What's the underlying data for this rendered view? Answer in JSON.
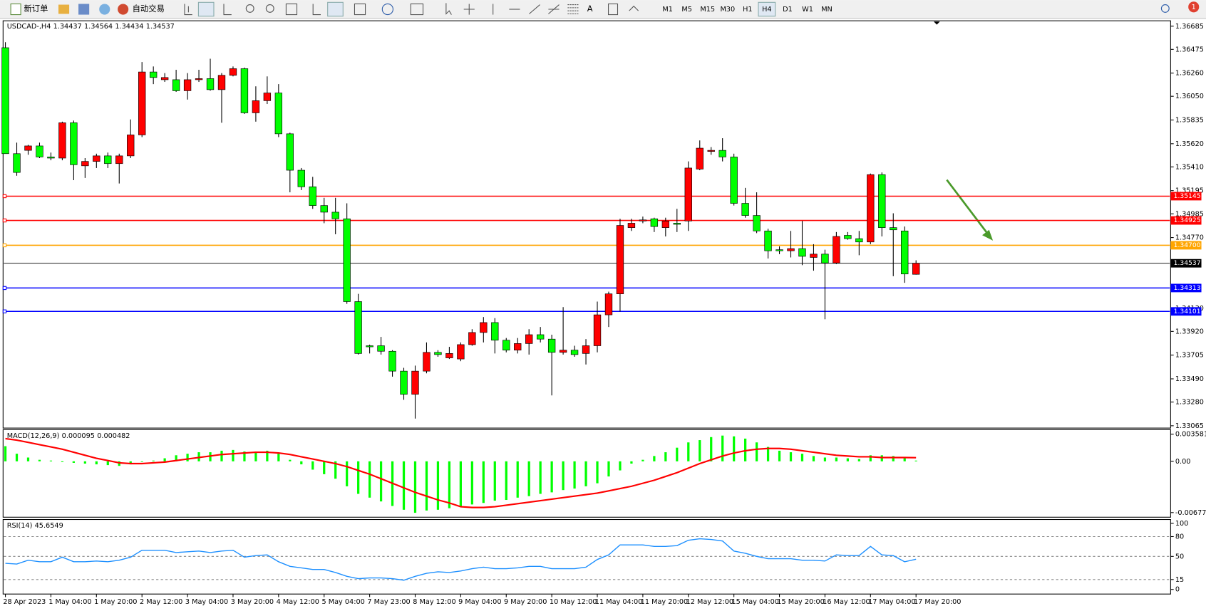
{
  "toolbar": {
    "new_order": "新订单",
    "auto_trading": "自动交易",
    "text_tool": "A",
    "timeframes": [
      "M1",
      "M5",
      "M15",
      "M30",
      "H1",
      "H4",
      "D1",
      "W1",
      "MN"
    ],
    "selected_timeframe": 5,
    "notifications": 1
  },
  "chart_data": [
    {
      "type": "candlestick",
      "title": "USDCAD-,H4",
      "header_values": [
        1.34437,
        1.34564,
        1.34434,
        1.34537
      ],
      "categories": [
        "28 Apr 2023",
        null,
        null,
        null,
        "1 May 04:00",
        null,
        null,
        null,
        "1 May 20:00",
        null,
        null,
        null,
        "2 May 12:00",
        null,
        null,
        null,
        "3 May 04:00",
        null,
        null,
        null,
        "3 May 20:00",
        null,
        null,
        null,
        "4 May 12:00",
        null,
        null,
        null,
        "5 May 04:00",
        null,
        null,
        null,
        "7 May 23:00",
        null,
        null,
        null,
        "8 May 12:00",
        null,
        null,
        null,
        "9 May 04:00",
        null,
        null,
        null,
        "9 May 20:00",
        null,
        null,
        null,
        "10 May 12:00",
        null,
        null,
        null,
        "11 May 04:00",
        null,
        null,
        null,
        "11 May 20:00",
        null,
        null,
        null,
        "12 May 12:00",
        null,
        null,
        null,
        "15 May 04:00",
        null,
        null,
        null,
        "15 May 20:00",
        null,
        null,
        null,
        "16 May 12:00",
        null,
        null,
        null,
        "17 May 04:00",
        null,
        null,
        null,
        "17 May 20:00"
      ],
      "open": [
        1.3649,
        1.3553,
        1.3556,
        1.356,
        1.355,
        1.3549,
        1.3581,
        1.3542,
        1.3546,
        1.3551,
        1.3544,
        1.3551,
        1.357,
        1.3627,
        1.362,
        1.362,
        1.361,
        1.362,
        1.3621,
        1.3611,
        1.3624,
        1.363,
        1.359,
        1.3601,
        1.3608,
        1.3571,
        1.3538,
        1.3523,
        1.3506,
        1.35,
        1.3494,
        1.3419,
        1.3379,
        1.3379,
        1.3374,
        1.3356,
        1.3335,
        1.3356,
        1.3373,
        1.3368,
        1.3367,
        1.338,
        1.3391,
        1.34,
        1.3384,
        1.3375,
        1.3381,
        1.3389,
        1.3385,
        1.3373,
        1.3375,
        1.3372,
        1.3379,
        1.3407,
        1.3426,
        1.3486,
        1.3492,
        1.3494,
        1.3486,
        1.349,
        1.3492,
        1.3539,
        1.3555,
        1.3556,
        1.355,
        1.3508,
        1.3497,
        1.3483,
        1.3466,
        1.3465,
        1.3467,
        1.3459,
        1.3462,
        1.3454,
        1.3479,
        1.3476,
        1.3473,
        1.3534,
        1.3486,
        1.3483,
        1.34437
      ],
      "high": [
        1.3654,
        1.3563,
        1.3561,
        1.3563,
        1.3554,
        1.3582,
        1.3583,
        1.3549,
        1.3553,
        1.3554,
        1.3553,
        1.3584,
        1.3636,
        1.3632,
        1.3626,
        1.3629,
        1.3626,
        1.3629,
        1.3639,
        1.3626,
        1.3632,
        1.3631,
        1.3614,
        1.3623,
        1.3616,
        1.3572,
        1.354,
        1.3532,
        1.3513,
        1.3513,
        1.3508,
        1.3426,
        1.338,
        1.3387,
        1.3375,
        1.3359,
        1.3361,
        1.3382,
        1.3375,
        1.3378,
        1.3382,
        1.3394,
        1.3405,
        1.3404,
        1.3386,
        1.3386,
        1.3394,
        1.3396,
        1.3389,
        1.3414,
        1.3379,
        1.3385,
        1.3419,
        1.3428,
        1.3494,
        1.3494,
        1.3496,
        1.3495,
        1.3495,
        1.3503,
        1.3546,
        1.3565,
        1.3559,
        1.3567,
        1.3553,
        1.3522,
        1.3518,
        1.3485,
        1.3469,
        1.3483,
        1.3492,
        1.3471,
        1.3466,
        1.3482,
        1.3482,
        1.3483,
        1.3535,
        1.3536,
        1.3499,
        1.3487,
        1.34564
      ],
      "low": [
        1.3553,
        1.3533,
        1.3552,
        1.3549,
        1.3547,
        1.3547,
        1.3529,
        1.3531,
        1.354,
        1.354,
        1.3526,
        1.3549,
        1.3568,
        1.3616,
        1.3618,
        1.3609,
        1.3602,
        1.3618,
        1.361,
        1.3581,
        1.3623,
        1.3589,
        1.3582,
        1.3598,
        1.3568,
        1.3518,
        1.352,
        1.3503,
        1.349,
        1.348,
        1.3417,
        1.3371,
        1.3372,
        1.3371,
        1.3351,
        1.333,
        1.3313,
        1.3354,
        1.3369,
        1.3367,
        1.3365,
        1.3379,
        1.3382,
        1.3372,
        1.3373,
        1.3372,
        1.3371,
        1.3382,
        1.3334,
        1.3371,
        1.3369,
        1.3362,
        1.3373,
        1.3396,
        1.341,
        1.3483,
        1.349,
        1.3482,
        1.3478,
        1.3482,
        1.3483,
        1.3538,
        1.3552,
        1.3546,
        1.3506,
        1.3495,
        1.3481,
        1.3458,
        1.3462,
        1.3459,
        1.3452,
        1.3447,
        1.3403,
        1.3453,
        1.3475,
        1.3461,
        1.3471,
        1.3478,
        1.3442,
        1.3436,
        1.34434
      ],
      "close": [
        1.3553,
        1.3536,
        1.356,
        1.355,
        1.3549,
        1.3581,
        1.3543,
        1.3546,
        1.3551,
        1.3544,
        1.3551,
        1.357,
        1.3627,
        1.3622,
        1.3622,
        1.361,
        1.362,
        1.3621,
        1.3611,
        1.3624,
        1.363,
        1.359,
        1.3601,
        1.3608,
        1.3571,
        1.3538,
        1.3523,
        1.3506,
        1.35,
        1.3494,
        1.3419,
        1.3372,
        1.3378,
        1.3374,
        1.3356,
        1.3335,
        1.3356,
        1.3373,
        1.3371,
        1.3372,
        1.338,
        1.3391,
        1.34,
        1.3384,
        1.3375,
        1.3381,
        1.3389,
        1.3385,
        1.3373,
        1.3375,
        1.3371,
        1.3379,
        1.3407,
        1.3426,
        1.3488,
        1.349,
        1.3493,
        1.3487,
        1.3492,
        1.3489,
        1.354,
        1.3558,
        1.3556,
        1.355,
        1.3508,
        1.3497,
        1.3483,
        1.3465,
        1.3465,
        1.3467,
        1.346,
        1.3462,
        1.3454,
        1.3478,
        1.3476,
        1.3473,
        1.3534,
        1.3486,
        1.3484,
        1.3444,
        1.34537
      ],
      "up_color": "#ff0000",
      "down_color": "#00ff00",
      "ylim": [
        1.33065,
        1.36685
      ],
      "yticks": [
        1.36685,
        1.36475,
        {
          "value": 1.3626,
          "label": "1.36260"
        },
        {
          "value": 1.3605,
          "label": "1.36050"
        },
        1.35835,
        {
          "value": 1.3562,
          "label": "1.35620"
        },
        {
          "value": 1.3541,
          "label": "1.35410"
        },
        1.35195,
        1.34985,
        {
          "value": 1.3477,
          "label": "1.34770"
        },
        {
          "value": 1.3413,
          "label": "1.34130"
        },
        {
          "value": 1.3392,
          "label": "1.33920"
        },
        1.33705,
        {
          "value": 1.3349,
          "label": "1.33490"
        },
        {
          "value": 1.3328,
          "label": "1.33280"
        },
        1.33065
      ],
      "hlines": [
        {
          "value": 1.35145,
          "color": "#ff0000"
        },
        {
          "value": 1.34925,
          "color": "#ff0000"
        },
        {
          "value": 1.347,
          "label": "1.34700",
          "color": "#ffa500"
        },
        {
          "value": 1.34537,
          "color": "#000000"
        },
        {
          "value": 1.34313,
          "color": "#0000ff"
        },
        {
          "value": 1.34101,
          "color": "#0000ff"
        }
      ]
    },
    {
      "type": "macd",
      "title": "MACD(12,26,9)",
      "histogram": {
        "color": "#00ff00",
        "values": [
          0.002,
          0.001,
          0.0005,
          0.0002,
          0.0001,
          -0.0001,
          -0.0002,
          -0.0003,
          -0.0004,
          -0.0005,
          -0.0006,
          -0.0004,
          0,
          0.0001,
          0.0004,
          0.0008,
          0.001,
          0.0012,
          0.0012,
          0.0014,
          0.0015,
          0.0013,
          0.0013,
          0.0014,
          0.001,
          0.0002,
          -0.0004,
          -0.0011,
          -0.0017,
          -0.0023,
          -0.0033,
          -0.0043,
          -0.0048,
          -0.0053,
          -0.0059,
          -0.0064,
          -0.0068,
          -0.0065,
          -0.0064,
          -0.0062,
          -0.006,
          -0.0057,
          -0.0055,
          -0.0052,
          -0.0051,
          -0.0048,
          -0.0046,
          -0.0043,
          -0.0041,
          -0.0038,
          -0.0036,
          -0.0033,
          -0.0029,
          -0.002,
          -0.0012,
          -0.0003,
          0.0002,
          0.0007,
          0.0012,
          0.0018,
          0.0025,
          0.0028,
          0.0032,
          0.0034,
          0.0033,
          0.003,
          0.0025,
          0.0019,
          0.0014,
          0.0012,
          0.001,
          0.0007,
          0.0005,
          0.0005,
          0.0004,
          0.0003,
          0.0008,
          0.0008,
          0.0007,
          0.0004,
          9.5e-05
        ]
      },
      "signal": {
        "color": "#ff0000",
        "values": [
          0.003,
          0.0028,
          0.0025,
          0.0022,
          0.0019,
          0.0016,
          0.0012,
          0.0008,
          0.0004,
          0.0001,
          -0.0002,
          -0.0003,
          -0.0003,
          -0.0002,
          -0.0001,
          0.0001,
          0.0003,
          0.0005,
          0.0007,
          0.0009,
          0.001,
          0.0011,
          0.0012,
          0.0012,
          0.0011,
          0.0009,
          0.0006,
          0.0003,
          0,
          -0.0003,
          -0.0007,
          -0.0012,
          -0.0017,
          -0.0023,
          -0.0029,
          -0.0035,
          -0.0041,
          -0.0046,
          -0.0051,
          -0.0055,
          -0.006,
          -0.0061,
          -0.0061,
          -0.006,
          -0.0058,
          -0.0056,
          -0.0054,
          -0.0052,
          -0.005,
          -0.0048,
          -0.0046,
          -0.0044,
          -0.0042,
          -0.0039,
          -0.0036,
          -0.0033,
          -0.0029,
          -0.0025,
          -0.002,
          -0.0015,
          -0.0009,
          -0.0003,
          0.0002,
          0.0007,
          0.0011,
          0.0014,
          0.0016,
          0.0017,
          0.0017,
          0.0016,
          0.0014,
          0.0012,
          0.001,
          0.0008,
          0.0007,
          0.0006,
          0.0006,
          0.0005,
          0.0005,
          0.0005,
          0.000482
        ]
      },
      "ylim": [
        -0.006775,
        0.003581
      ],
      "yticks": [
        0.003581,
        {
          "value": 0,
          "label": "0.00"
        },
        -0.006775
      ]
    },
    {
      "type": "line",
      "title": "RSI(14)",
      "color": "#1e90ff",
      "values": [
        39.5,
        38.4,
        44.2,
        41.9,
        41.9,
        48.8,
        41.9,
        41.9,
        43,
        41.9,
        44.2,
        48.8,
        59.3,
        59.3,
        59.3,
        55.8,
        57,
        58.1,
        55.8,
        58.1,
        59.3,
        48.8,
        51.2,
        52.3,
        41.9,
        34.9,
        32.6,
        30.2,
        30.2,
        25.6,
        19.8,
        16.3,
        17.4,
        17.4,
        16.3,
        14,
        19.8,
        24.4,
        26.7,
        25.6,
        27.9,
        31.4,
        33.7,
        31.4,
        31.4,
        32.6,
        34.9,
        34.9,
        31.4,
        31.4,
        31.4,
        33.7,
        45.3,
        52.3,
        67.4,
        67.4,
        67.4,
        65.1,
        65.1,
        66.3,
        74.4,
        76.7,
        75.6,
        73.3,
        58.1,
        54.7,
        50,
        46.5,
        46.5,
        46.5,
        44.2,
        44.2,
        43,
        52.3,
        51.2,
        51.2,
        65.1,
        52.3,
        51.2,
        41.9,
        45.6549
      ],
      "ylim": [
        0,
        100
      ],
      "yticks": [
        100,
        80,
        50,
        15,
        0
      ],
      "level_grid": "dashed"
    }
  ]
}
